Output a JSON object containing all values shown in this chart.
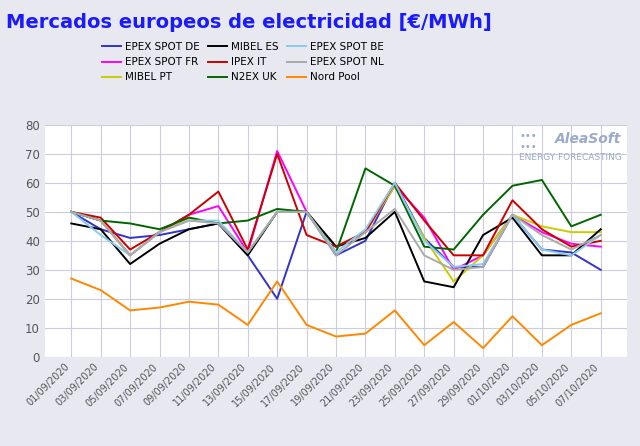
{
  "title": "Mercados europeos de electricidad [€/MWh]",
  "x_labels": [
    "01/09/2020",
    "03/09/2020",
    "05/09/2020",
    "07/09/2020",
    "09/09/2020",
    "11/09/2020",
    "13/09/2020",
    "15/09/2020",
    "17/09/2020",
    "19/09/2020",
    "21/09/2020",
    "23/09/2020",
    "25/09/2020",
    "27/09/2020",
    "29/09/2020",
    "01/10/2020",
    "03/10/2020",
    "05/10/2020",
    "07/10/2020"
  ],
  "series": [
    {
      "name": "EPEX SPOT DE",
      "color": "#3333cc",
      "values": [
        50,
        44,
        41,
        42,
        44,
        46,
        35,
        20,
        50,
        35,
        40,
        60,
        41,
        31,
        31,
        49,
        37,
        36,
        30
      ]
    },
    {
      "name": "EPEX SPOT FR",
      "color": "#ff00ff",
      "values": [
        50,
        47,
        35,
        43,
        49,
        52,
        36,
        71,
        50,
        38,
        43,
        59,
        48,
        30,
        35,
        49,
        43,
        39,
        38
      ]
    },
    {
      "name": "MIBEL PT",
      "color": "#cccc00",
      "values": [
        50,
        47,
        35,
        43,
        48,
        46,
        36,
        50,
        50,
        38,
        43,
        59,
        41,
        26,
        35,
        49,
        45,
        43,
        43
      ]
    },
    {
      "name": "MIBEL ES",
      "color": "#000000",
      "values": [
        46,
        44,
        32,
        39,
        44,
        46,
        35,
        50,
        50,
        38,
        41,
        50,
        26,
        24,
        42,
        48,
        35,
        35,
        44
      ]
    },
    {
      "name": "IPEX IT",
      "color": "#cc0000",
      "values": [
        50,
        48,
        37,
        43,
        49,
        57,
        37,
        70,
        42,
        38,
        43,
        60,
        47,
        35,
        35,
        54,
        44,
        38,
        40
      ]
    },
    {
      "name": "N2EX UK",
      "color": "#006600",
      "values": [
        50,
        47,
        46,
        44,
        48,
        46,
        47,
        51,
        50,
        36,
        65,
        59,
        38,
        37,
        49,
        59,
        61,
        45,
        49
      ]
    },
    {
      "name": "EPEX SPOT BE",
      "color": "#88ccee",
      "values": [
        50,
        42,
        35,
        43,
        47,
        47,
        36,
        50,
        50,
        36,
        44,
        60,
        40,
        31,
        32,
        49,
        37,
        35,
        42
      ]
    },
    {
      "name": "EPEX SPOT NL",
      "color": "#aaaaaa",
      "values": [
        50,
        47,
        35,
        43,
        47,
        46,
        36,
        50,
        50,
        35,
        43,
        51,
        35,
        30,
        31,
        49,
        42,
        37,
        42
      ]
    },
    {
      "name": "Nord Pool",
      "color": "#ff8800",
      "values": [
        27,
        23,
        16,
        17,
        19,
        18,
        11,
        26,
        11,
        7,
        8,
        16,
        4,
        12,
        3,
        14,
        4,
        11,
        15
      ]
    }
  ],
  "ylim": [
    0,
    80
  ],
  "yticks": [
    0,
    10,
    20,
    30,
    40,
    50,
    60,
    70,
    80
  ],
  "chart_bg": "#ffffff",
  "fig_bg": "#e8e8f0",
  "grid_color": "#ccccdd",
  "title_color": "#1a1aff",
  "tick_color": "#555555",
  "watermark_main": "AleaSoft",
  "watermark_sub": "ENERGY FORECASTING"
}
